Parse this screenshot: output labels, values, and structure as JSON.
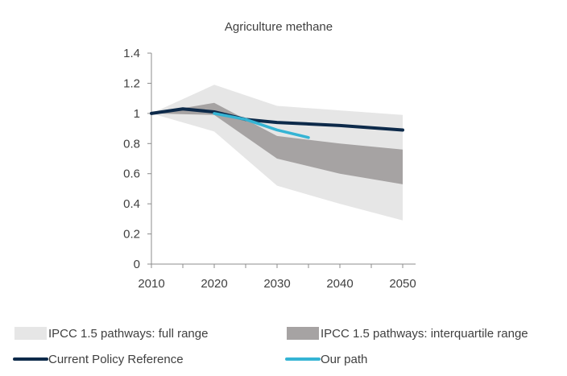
{
  "chart_data": {
    "type": "area",
    "title": "Agriculture methane",
    "xlabel": "",
    "ylabel": "",
    "xlim": [
      2010,
      2050
    ],
    "ylim": [
      0,
      1.4
    ],
    "x_ticks": [
      "2010",
      "2020",
      "2030",
      "2040",
      "2050"
    ],
    "y_ticks": [
      "0",
      "0.2",
      "0.4",
      "0.6",
      "0.8",
      "1",
      "1.2",
      "1.4"
    ],
    "grid": false,
    "legend_position": "bottom",
    "bands": [
      {
        "name": "IPCC 1.5 pathways: full range",
        "color": "#e6e6e6",
        "x": [
          2010,
          2020,
          2030,
          2040,
          2050
        ],
        "upper": [
          1.0,
          1.19,
          1.05,
          1.02,
          0.99
        ],
        "lower": [
          1.0,
          0.88,
          0.52,
          0.4,
          0.29
        ]
      },
      {
        "name": "IPCC 1.5 pathways: interquartile range",
        "color": "#a6a3a3",
        "x": [
          2010,
          2020,
          2030,
          2040,
          2050
        ],
        "upper": [
          1.0,
          1.07,
          0.85,
          0.8,
          0.76
        ],
        "lower": [
          1.0,
          0.99,
          0.7,
          0.6,
          0.53
        ]
      }
    ],
    "series": [
      {
        "name": "Current Policy Reference",
        "color": "#0d2a4a",
        "x": [
          2010,
          2015,
          2020,
          2025,
          2030,
          2040,
          2050
        ],
        "values": [
          1.0,
          1.03,
          1.01,
          0.96,
          0.94,
          0.92,
          0.89
        ]
      },
      {
        "name": "Our path",
        "color": "#35b4d4",
        "x": [
          2020,
          2025,
          2030,
          2035
        ],
        "values": [
          1.0,
          0.96,
          0.89,
          0.84
        ]
      }
    ]
  }
}
